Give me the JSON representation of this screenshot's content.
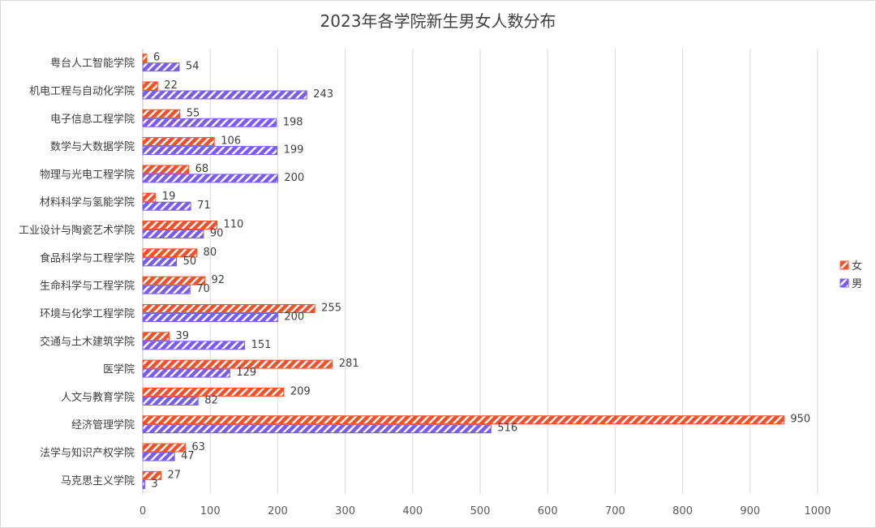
{
  "chart_data": {
    "type": "bar",
    "orientation": "horizontal",
    "title": "2023年各学院新生男女人数分布",
    "categories": [
      "粤台人工智能学院",
      "机电工程与自动化学院",
      "电子信息工程学院",
      "数学与大数据学院",
      "物理与光电工程学院",
      "材料科学与氢能学院",
      "工业设计与陶瓷艺术学院",
      "食品科学与工程学院",
      "生命科学与工程学院",
      "环境与化学工程学院",
      "交通与土木建筑学院",
      "医学院",
      "人文与教育学院",
      "经济管理学院",
      "法学与知识产权学院",
      "马克思主义学院"
    ],
    "series": [
      {
        "name": "女",
        "color": "#f4502a",
        "values": [
          6,
          22,
          55,
          106,
          68,
          19,
          110,
          80,
          92,
          255,
          39,
          281,
          209,
          950,
          63,
          27
        ]
      },
      {
        "name": "男",
        "color": "#7a5cf5",
        "values": [
          54,
          243,
          198,
          199,
          200,
          71,
          90,
          50,
          70,
          200,
          151,
          129,
          82,
          516,
          47,
          3
        ]
      }
    ],
    "xlim": [
      0,
      1000
    ],
    "xticks": [
      0,
      100,
      200,
      300,
      400,
      500,
      600,
      700,
      800,
      900,
      1000
    ],
    "grid": true,
    "legend_position": "right",
    "bar_pattern": "diagonal-hatch"
  }
}
